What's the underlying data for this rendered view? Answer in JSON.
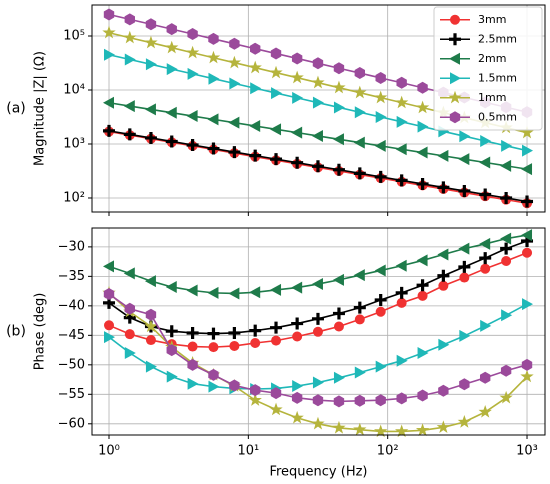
{
  "chart_data": [
    {
      "type": "line",
      "panel_label": "(a)",
      "ylabel": "Magnitude |Z| (Ω)",
      "xlog": true,
      "ylog": true,
      "grid": true,
      "legend": "upper right",
      "xlim": [
        0.755,
        1346
      ],
      "xticks": [
        1,
        10,
        100,
        1000
      ],
      "ylim": [
        55,
        375000
      ],
      "yticks": [
        {
          "value": 100,
          "label": "10²"
        },
        {
          "value": 1000,
          "label": "10³"
        },
        {
          "value": 10000,
          "label": "10⁴"
        },
        {
          "value": 100000,
          "label": "10⁵"
        }
      ],
      "x": [
        1,
        1.41,
        2,
        2.82,
        3.98,
        5.62,
        7.94,
        11.2,
        15.8,
        22.4,
        31.6,
        44.7,
        63.1,
        89.1,
        126,
        178,
        251,
        355,
        501,
        708,
        1000
      ],
      "series": [
        {
          "name": "3mm",
          "color": "#f03232",
          "marker": "circle",
          "values": [
            1700,
            1459,
            1252,
            1074,
            922,
            791,
            679,
            582,
            500,
            429,
            368,
            316,
            271,
            233,
            200,
            171,
            147,
            126,
            108,
            93,
            80
          ]
        },
        {
          "name": "2.5mm",
          "color": "#000000",
          "marker": "plus",
          "values": [
            1750,
            1505,
            1294,
            1113,
            957,
            823,
            708,
            609,
            524,
            450,
            387,
            333,
            286,
            246,
            212,
            182,
            157,
            135,
            116,
            100,
            86
          ]
        },
        {
          "name": "2mm",
          "color": "#1e7b4a",
          "marker": "tri-left",
          "values": [
            5800,
            5034,
            4370,
            3793,
            3292,
            2858,
            2480,
            2153,
            1869,
            1622,
            1408,
            1222,
            1061,
            921,
            799,
            694,
            602,
            523,
            454,
            394,
            342
          ]
        },
        {
          "name": "1.5mm",
          "color": "#1fb8b8",
          "marker": "tri-right",
          "values": [
            45000,
            36680,
            29900,
            24370,
            19860,
            16190,
            13200,
            10760,
            8770,
            7150,
            5826,
            4750,
            3870,
            3155,
            2572,
            2096,
            1709,
            1393,
            1135,
            925,
            754
          ]
        },
        {
          "name": "1mm",
          "color": "#b5b43c",
          "marker": "star",
          "values": [
            115000,
            92900,
            75100,
            60700,
            49000,
            39600,
            32000,
            25900,
            20900,
            16900,
            13660,
            11040,
            8920,
            7210,
            5830,
            4710,
            3800,
            3070,
            2480,
            2010,
            1620
          ]
        },
        {
          "name": "0.5mm",
          "color": "#9b4a9b",
          "marker": "hexagon",
          "values": [
            250000,
            203000,
            165000,
            134000,
            109000,
            88300,
            71700,
            58200,
            47300,
            38400,
            31200,
            25300,
            20600,
            16700,
            13600,
            11000,
            8950,
            7270,
            5900,
            4790,
            3890
          ]
        }
      ]
    },
    {
      "type": "line",
      "panel_label": "(b)",
      "ylabel": "Phase (deg)",
      "xlabel": "Frequency (Hz)",
      "xlog": true,
      "grid": true,
      "xlim": [
        0.755,
        1346
      ],
      "xticks": [
        {
          "value": 1,
          "label": "10⁰"
        },
        {
          "value": 10,
          "label": "10¹"
        },
        {
          "value": 100,
          "label": "10²"
        },
        {
          "value": 1000,
          "label": "10³"
        }
      ],
      "ylim": [
        -61.9,
        -26.8
      ],
      "yticks": [
        {
          "value": -60,
          "label": "−60"
        },
        {
          "value": -55,
          "label": "−55"
        },
        {
          "value": -50,
          "label": "−50"
        },
        {
          "value": -45,
          "label": "−45"
        },
        {
          "value": -40,
          "label": "−40"
        },
        {
          "value": -35,
          "label": "−35"
        },
        {
          "value": -30,
          "label": "−30"
        }
      ],
      "x": [
        1,
        1.41,
        2,
        2.82,
        3.98,
        5.62,
        7.94,
        11.2,
        15.8,
        22.4,
        31.6,
        44.7,
        63.1,
        89.1,
        126,
        178,
        251,
        355,
        501,
        708,
        1000
      ],
      "series": [
        {
          "name": "3mm",
          "color": "#f03232",
          "marker": "circle",
          "values": [
            -43.3,
            -44.8,
            -45.8,
            -46.5,
            -46.9,
            -47,
            -46.8,
            -46.3,
            -45.9,
            -45.2,
            -44.4,
            -43.5,
            -42.3,
            -41,
            -39.5,
            -38.3,
            -36.6,
            -35.2,
            -33.7,
            -32.4,
            -31
          ]
        },
        {
          "name": "2.5mm",
          "color": "#000000",
          "marker": "plus",
          "values": [
            -39.5,
            -42,
            -43.5,
            -44.3,
            -44.6,
            -44.7,
            -44.6,
            -44.2,
            -43.7,
            -43,
            -42.2,
            -41.3,
            -40.3,
            -39,
            -37.8,
            -36.5,
            -34.9,
            -33.4,
            -31.9,
            -30.3,
            -29
          ]
        },
        {
          "name": "2mm",
          "color": "#1e7b4a",
          "marker": "tri-left",
          "values": [
            -33.3,
            -34.5,
            -35.8,
            -36.8,
            -37.4,
            -37.8,
            -37.9,
            -37.7,
            -37.3,
            -36.9,
            -36.3,
            -35.6,
            -34.8,
            -34,
            -33.2,
            -32.3,
            -31.3,
            -30.3,
            -29.5,
            -28.6,
            -28
          ]
        },
        {
          "name": "1.5mm",
          "color": "#1fb8b8",
          "marker": "tri-right",
          "values": [
            -45.3,
            -48,
            -50.3,
            -52,
            -53.2,
            -53.7,
            -54,
            -54.1,
            -54,
            -53.6,
            -53,
            -52.2,
            -51.3,
            -50.3,
            -49.3,
            -48,
            -46.6,
            -45.1,
            -43.4,
            -41.6,
            -39.7
          ]
        },
        {
          "name": "1mm",
          "color": "#b5b43c",
          "marker": "star",
          "values": [
            -37.8,
            -41,
            -43.5,
            -47,
            -49.7,
            -51.7,
            -53.6,
            -56,
            -57.6,
            -59,
            -60,
            -60.7,
            -61,
            -61.3,
            -61.3,
            -61.1,
            -60.6,
            -59.7,
            -58,
            -55.6,
            -52
          ]
        },
        {
          "name": "0.5mm",
          "color": "#9b4a9b",
          "marker": "hexagon",
          "values": [
            -38,
            -40.5,
            -41.5,
            -47.5,
            -50,
            -51.7,
            -53.5,
            -54.3,
            -54.8,
            -55.6,
            -56,
            -56.2,
            -56.1,
            -56,
            -55.7,
            -55.2,
            -54.4,
            -53.3,
            -52.2,
            -51,
            -50
          ]
        }
      ]
    }
  ]
}
